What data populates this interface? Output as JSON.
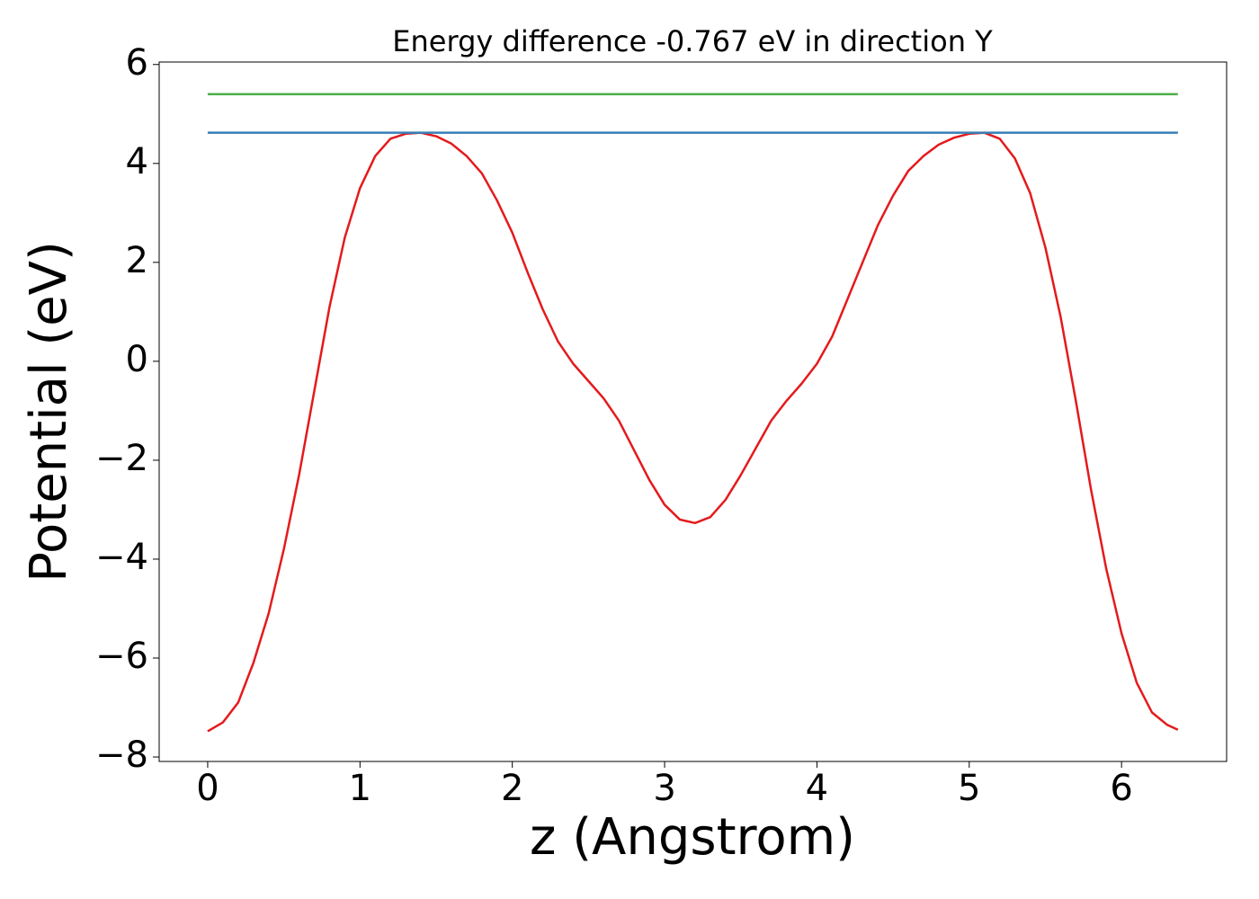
{
  "chart_data": {
    "type": "line",
    "title": "Energy difference -0.767 eV in direction Y",
    "x_label": "z (Angstrom)",
    "y_label": "Potential (eV)",
    "xlim": [
      -0.3185,
      6.69
    ],
    "ylim": [
      -8.09,
      6.05
    ],
    "xticks": [
      0,
      1,
      2,
      3,
      4,
      5,
      6
    ],
    "yticks": [
      {
        "value": -8,
        "label": "−8"
      },
      {
        "value": -6,
        "label": "−6"
      },
      {
        "value": -4,
        "label": "−4"
      },
      {
        "value": -2,
        "label": "−2"
      },
      0,
      2,
      4,
      6
    ],
    "series": [
      {
        "color": "#e41a1c",
        "x": [
          0.0,
          0.1,
          0.2,
          0.3,
          0.4,
          0.5,
          0.6,
          0.7,
          0.8,
          0.9,
          1.0,
          1.1,
          1.2,
          1.3,
          1.4,
          1.5,
          1.6,
          1.7,
          1.8,
          1.9,
          2.0,
          2.1,
          2.2,
          2.3,
          2.4,
          2.5,
          2.6,
          2.7,
          2.8,
          2.9,
          3.0,
          3.1,
          3.2,
          3.3,
          3.4,
          3.5,
          3.6,
          3.7,
          3.8,
          3.9,
          4.0,
          4.1,
          4.2,
          4.3,
          4.4,
          4.5,
          4.6,
          4.7,
          4.8,
          4.9,
          5.0,
          5.1,
          5.2,
          5.3,
          5.4,
          5.5,
          5.6,
          5.7,
          5.8,
          5.9,
          6.0,
          6.1,
          6.2,
          6.3,
          6.37
        ],
        "values": [
          -7.48,
          -7.3,
          -6.9,
          -6.1,
          -5.1,
          -3.8,
          -2.3,
          -0.6,
          1.1,
          2.5,
          3.5,
          4.15,
          4.5,
          4.6,
          4.62,
          4.55,
          4.4,
          4.15,
          3.8,
          3.25,
          2.6,
          1.8,
          1.05,
          0.4,
          -0.05,
          -0.4,
          -0.75,
          -1.2,
          -1.8,
          -2.4,
          -2.9,
          -3.2,
          -3.27,
          -3.15,
          -2.8,
          -2.3,
          -1.75,
          -1.2,
          -0.8,
          -0.45,
          -0.05,
          0.5,
          1.25,
          2.0,
          2.75,
          3.35,
          3.85,
          4.15,
          4.38,
          4.52,
          4.6,
          4.62,
          4.5,
          4.1,
          3.4,
          2.3,
          0.9,
          -0.8,
          -2.6,
          -4.2,
          -5.5,
          -6.5,
          -7.1,
          -7.35,
          -7.45
        ]
      },
      {
        "color": "#377eb8",
        "x": [
          0.0,
          6.37
        ],
        "values": [
          4.62,
          4.62
        ]
      },
      {
        "color": "#4daf4a",
        "x": [
          0.0,
          6.37
        ],
        "values": [
          5.4,
          5.4
        ]
      }
    ]
  }
}
